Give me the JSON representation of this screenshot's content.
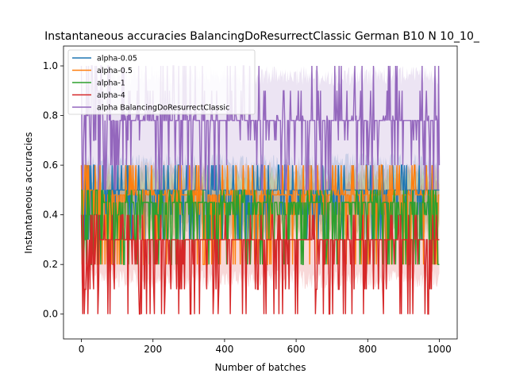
{
  "chart_data": {
    "type": "line",
    "title": "Instantaneous accuracies BalancingDoResurrectClassic German B10 N 10_10_",
    "xlabel": "Number of batches",
    "ylabel": "Instantaneous accuracies",
    "xlim": [
      -50,
      1050
    ],
    "ylim": [
      -0.1,
      1.08
    ],
    "xticks": [
      0,
      200,
      400,
      600,
      800,
      1000
    ],
    "yticks": [
      0.0,
      0.2,
      0.4,
      0.6,
      0.8,
      1.0
    ],
    "xtick_labels": [
      "0",
      "200",
      "400",
      "600",
      "800",
      "1000"
    ],
    "ytick_labels": [
      "0.0",
      "0.2",
      "0.4",
      "0.6",
      "0.8",
      "1.0"
    ],
    "legend_placement": "upper-left",
    "grid": false,
    "x_range": [
      0,
      1000
    ],
    "series": [
      {
        "name": "alpha-0.05",
        "color": "#1f77b4",
        "mean": 0.5,
        "band": [
          0.35,
          0.65
        ],
        "levels": [
          0.3,
          0.4,
          0.5,
          0.6
        ]
      },
      {
        "name": "alpha-0.5",
        "color": "#ff7f0e",
        "mean": 0.48,
        "band": [
          0.3,
          0.62
        ],
        "levels": [
          0.2,
          0.4,
          0.5,
          0.6
        ]
      },
      {
        "name": "alpha-1",
        "color": "#2ca02c",
        "mean": 0.45,
        "band": [
          0.3,
          0.6
        ],
        "levels": [
          0.2,
          0.3,
          0.4,
          0.5
        ]
      },
      {
        "name": "alpha-4",
        "color": "#d62728",
        "mean": 0.3,
        "band": [
          0.1,
          0.55
        ],
        "levels": [
          0.0,
          0.1,
          0.2,
          0.3,
          0.4
        ]
      },
      {
        "name": "alpha BalancingDoResurrectClassic",
        "color": "#9467bd",
        "mean": 0.78,
        "band": [
          0.5,
          1.0
        ],
        "levels": [
          0.5,
          0.6,
          0.7,
          0.8,
          0.9,
          1.0
        ]
      }
    ]
  }
}
